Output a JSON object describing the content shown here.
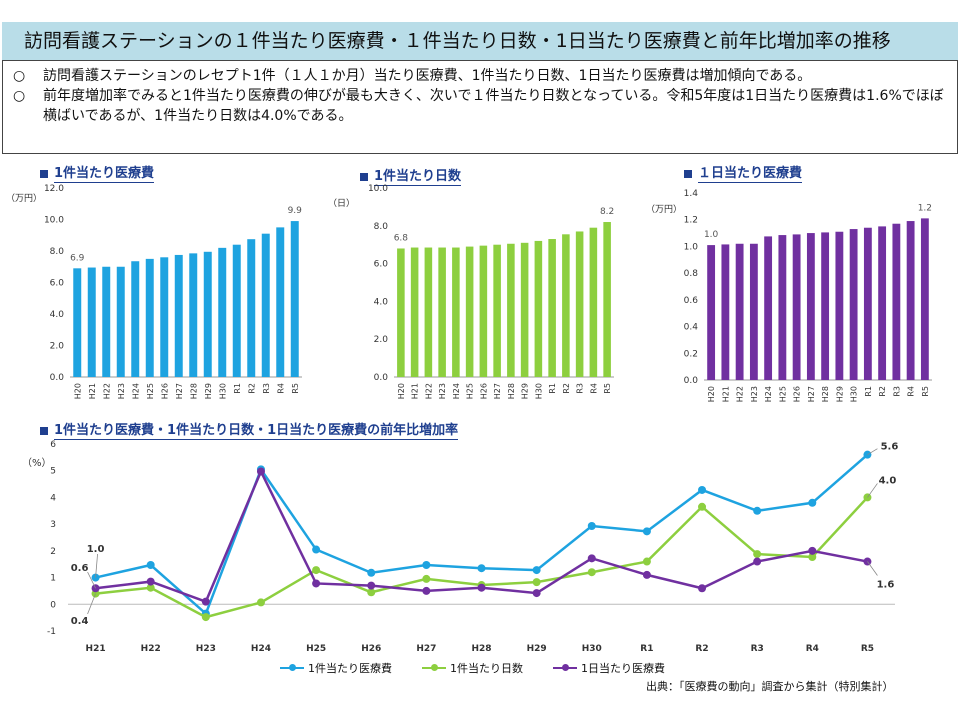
{
  "page": {
    "title": "訪問看護ステーションの１件当たり医療費・１件当たり日数・1日当たり医療費と前年比増加率の推移",
    "bullets": [
      {
        "mark": "○",
        "text": "訪問看護ステーションのレセプト1件（１人１か月）当たり医療費、1件当たり日数、1日当たり医療費は増加傾向である。"
      },
      {
        "mark": "○",
        "text": "前年度増加率でみると1件当たり医療費の伸びが最も大きく、次いで１件当たり日数となっている。令和5年度は1日当たり医療費は1.6%でほぼ横ばいであるが、1件当たり日数は4.0%である。"
      }
    ],
    "source": "出典：「医療費の動向」調査から集計（特別集計）"
  },
  "chart_data": [
    {
      "type": "bar",
      "title": "1件当たり医療費",
      "ylabel": "（万円）",
      "color": "#1ea3e0",
      "categories": [
        "H20",
        "H21",
        "H22",
        "H23",
        "H24",
        "H25",
        "H26",
        "H27",
        "H28",
        "H29",
        "H30",
        "R1",
        "R2",
        "R3",
        "R4",
        "R5"
      ],
      "values": [
        6.9,
        6.95,
        7.0,
        7.0,
        7.35,
        7.5,
        7.6,
        7.75,
        7.85,
        7.95,
        8.2,
        8.4,
        8.75,
        9.1,
        9.5,
        9.9
      ],
      "ylim": [
        0,
        12
      ],
      "yticks": [
        "0.0",
        "2.0",
        "4.0",
        "6.0",
        "8.0",
        "10.0",
        "12.0"
      ],
      "first_label": "6.9",
      "last_label": "9.9"
    },
    {
      "type": "bar",
      "title": "1件当たり日数",
      "ylabel": "（日）",
      "color": "#8dcf3f",
      "categories": [
        "H20",
        "H21",
        "H22",
        "H23",
        "H24",
        "H25",
        "H26",
        "H27",
        "H28",
        "H29",
        "H30",
        "R1",
        "R2",
        "R3",
        "R4",
        "R5"
      ],
      "values": [
        6.8,
        6.85,
        6.85,
        6.85,
        6.85,
        6.9,
        6.95,
        7.0,
        7.05,
        7.1,
        7.2,
        7.3,
        7.55,
        7.7,
        7.9,
        8.2
      ],
      "ylim": [
        0,
        10
      ],
      "yticks": [
        "0.0",
        "2.0",
        "4.0",
        "6.0",
        "8.0",
        "10.0"
      ],
      "first_label": "6.8",
      "last_label": "8.2"
    },
    {
      "type": "bar",
      "title": "１日当たり医療費",
      "ylabel": "（万円）",
      "color": "#7030a0",
      "categories": [
        "H20",
        "H21",
        "H22",
        "H23",
        "H24",
        "H25",
        "H26",
        "H27",
        "H28",
        "H29",
        "H30",
        "R1",
        "R2",
        "R3",
        "R4",
        "R5"
      ],
      "values": [
        1.01,
        1.015,
        1.02,
        1.02,
        1.075,
        1.085,
        1.09,
        1.1,
        1.105,
        1.11,
        1.13,
        1.14,
        1.15,
        1.17,
        1.19,
        1.21
      ],
      "ylim": [
        0,
        1.4
      ],
      "yticks": [
        "0.0",
        "0.2",
        "0.4",
        "0.6",
        "0.8",
        "1.0",
        "1.2",
        "1.4"
      ],
      "first_label": "1.0",
      "last_label": "1.2"
    },
    {
      "type": "line",
      "title": "1件当たり医療費・1件当たり日数・1日当たり医療費の前年比増加率",
      "ylabel": "（%）",
      "categories": [
        "H21",
        "H22",
        "H23",
        "H24",
        "H25",
        "H26",
        "H27",
        "H28",
        "H29",
        "H30",
        "R1",
        "R2",
        "R3",
        "R4",
        "R5"
      ],
      "ylim": [
        -1,
        6
      ],
      "yticks": [
        "-1",
        "0",
        "1",
        "2",
        "3",
        "4",
        "5",
        "6"
      ],
      "series": [
        {
          "name": "1件当たり医療費",
          "color": "#1ea3e0",
          "values": [
            1.0,
            1.47,
            -0.35,
            5.05,
            2.05,
            1.18,
            1.47,
            1.35,
            1.28,
            2.93,
            2.73,
            4.28,
            3.5,
            3.8,
            5.6
          ]
        },
        {
          "name": "1件当たり日数",
          "color": "#8dcf3f",
          "values": [
            0.4,
            0.62,
            -0.48,
            0.07,
            1.28,
            0.45,
            0.95,
            0.72,
            0.83,
            1.2,
            1.6,
            3.65,
            1.88,
            1.77,
            4.0
          ]
        },
        {
          "name": "1日当たり医療費",
          "color": "#7030a0",
          "values": [
            0.6,
            0.85,
            0.1,
            4.97,
            0.78,
            0.7,
            0.5,
            0.62,
            0.42,
            1.72,
            1.1,
            0.6,
            1.6,
            2.0,
            1.6
          ]
        }
      ],
      "annotations": [
        "1.0",
        "0.6",
        "0.4",
        "5.6",
        "4.0",
        "1.6"
      ]
    }
  ]
}
